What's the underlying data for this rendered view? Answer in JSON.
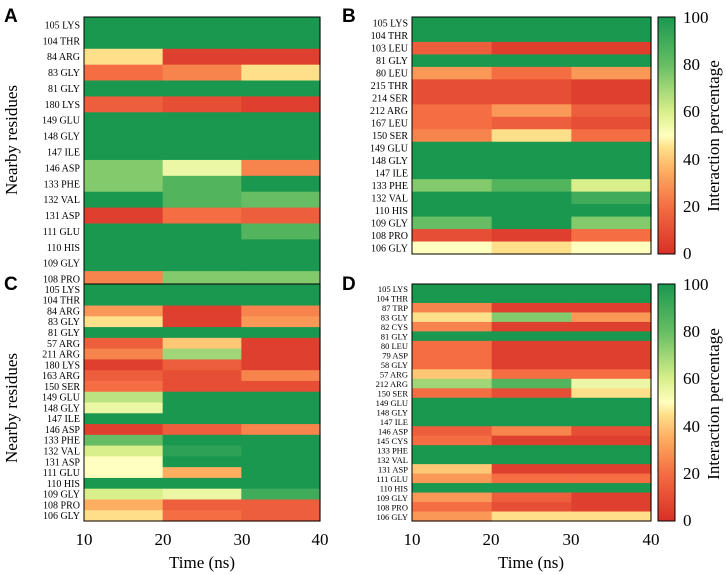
{
  "colors": {
    "c100": "#1a9850",
    "c80": "#66bd63",
    "c60": "#d9ef8b",
    "c50": "#ffffbf",
    "c40": "#fee08b",
    "c20": "#fdae61",
    "c0": "#d73027"
  },
  "chart_data": [
    {
      "type": "heatmap",
      "panel": "A",
      "xlabel": "",
      "ylabel": "Nearby residues",
      "x_bins": [
        "10-20",
        "20-30",
        "30-40"
      ],
      "rows": [
        {
          "label": "105 LYS",
          "values": [
            100,
            100,
            100
          ]
        },
        {
          "label": "104 THR",
          "values": [
            100,
            100,
            100
          ]
        },
        {
          "label": "84 ARG",
          "values": [
            45,
            5,
            5
          ]
        },
        {
          "label": "83 GLY",
          "values": [
            20,
            25,
            45
          ]
        },
        {
          "label": "81 GLY",
          "values": [
            100,
            100,
            100
          ]
        },
        {
          "label": "180 LYS",
          "values": [
            15,
            10,
            5
          ]
        },
        {
          "label": "149 GLU",
          "values": [
            100,
            100,
            100
          ]
        },
        {
          "label": "148 GLY",
          "values": [
            100,
            100,
            100
          ]
        },
        {
          "label": "147 ILE",
          "values": [
            100,
            100,
            100
          ]
        },
        {
          "label": "146 ASP",
          "values": [
            75,
            55,
            25
          ]
        },
        {
          "label": "133 PHE",
          "values": [
            75,
            85,
            100
          ]
        },
        {
          "label": "132 VAL",
          "values": [
            100,
            85,
            80
          ]
        },
        {
          "label": "131 ASP",
          "values": [
            5,
            20,
            15
          ]
        },
        {
          "label": "111 GLU",
          "values": [
            100,
            100,
            85
          ]
        },
        {
          "label": "110 HIS",
          "values": [
            100,
            100,
            100
          ]
        },
        {
          "label": "109 GLY",
          "values": [
            100,
            100,
            100
          ]
        },
        {
          "label": "108 PRO",
          "values": [
            25,
            75,
            75
          ]
        }
      ]
    },
    {
      "type": "heatmap",
      "panel": "B",
      "xlabel": "",
      "ylabel": "",
      "x_bins": [
        "10-20",
        "20-30",
        "30-40"
      ],
      "rows": [
        {
          "label": "105 LYS",
          "values": [
            100,
            100,
            100
          ]
        },
        {
          "label": "104 THR",
          "values": [
            100,
            100,
            100
          ]
        },
        {
          "label": "103 LEU",
          "values": [
            15,
            5,
            5
          ]
        },
        {
          "label": "81 GLY",
          "values": [
            100,
            100,
            100
          ]
        },
        {
          "label": "80 LEU",
          "values": [
            30,
            20,
            30
          ]
        },
        {
          "label": "215 THR",
          "values": [
            10,
            10,
            5
          ]
        },
        {
          "label": "214 SER",
          "values": [
            10,
            10,
            5
          ]
        },
        {
          "label": "212 ARG",
          "values": [
            20,
            30,
            15
          ]
        },
        {
          "label": "167 LEU",
          "values": [
            20,
            15,
            10
          ]
        },
        {
          "label": "150 SER",
          "values": [
            25,
            45,
            20
          ]
        },
        {
          "label": "149 GLU",
          "values": [
            100,
            100,
            100
          ]
        },
        {
          "label": "148 GLY",
          "values": [
            100,
            100,
            100
          ]
        },
        {
          "label": "147 ILE",
          "values": [
            100,
            100,
            100
          ]
        },
        {
          "label": "133 PHE",
          "values": [
            75,
            85,
            60
          ]
        },
        {
          "label": "132 VAL",
          "values": [
            100,
            100,
            90
          ]
        },
        {
          "label": "110 HIS",
          "values": [
            100,
            100,
            100
          ]
        },
        {
          "label": "109 GLY",
          "values": [
            80,
            100,
            75
          ]
        },
        {
          "label": "108 PRO",
          "values": [
            10,
            5,
            20
          ]
        },
        {
          "label": "106 GLY",
          "values": [
            50,
            45,
            50
          ]
        }
      ]
    },
    {
      "type": "heatmap",
      "panel": "C",
      "xlabel": "Time (ns)",
      "ylabel": "Nearby residues",
      "x_bins": [
        "10-20",
        "20-30",
        "30-40"
      ],
      "rows": [
        {
          "label": "105 LYS",
          "values": [
            100,
            100,
            100
          ]
        },
        {
          "label": "104 THR",
          "values": [
            100,
            100,
            100
          ]
        },
        {
          "label": "84 ARG",
          "values": [
            30,
            5,
            25
          ]
        },
        {
          "label": "83 GLY",
          "values": [
            45,
            5,
            30
          ]
        },
        {
          "label": "81 GLY",
          "values": [
            100,
            100,
            100
          ]
        },
        {
          "label": "57 ARG",
          "values": [
            15,
            40,
            5
          ]
        },
        {
          "label": "211 ARG",
          "values": [
            25,
            70,
            5
          ]
        },
        {
          "label": "180 LYS",
          "values": [
            5,
            15,
            5
          ]
        },
        {
          "label": "163 ARG",
          "values": [
            15,
            10,
            25
          ]
        },
        {
          "label": "150 SER",
          "values": [
            20,
            10,
            10
          ]
        },
        {
          "label": "149 GLU",
          "values": [
            65,
            100,
            100
          ]
        },
        {
          "label": "148 GLY",
          "values": [
            55,
            100,
            100
          ]
        },
        {
          "label": "147 ILE",
          "values": [
            100,
            100,
            100
          ]
        },
        {
          "label": "146 ASP",
          "values": [
            5,
            15,
            25
          ]
        },
        {
          "label": "133 PHE",
          "values": [
            80,
            100,
            100
          ]
        },
        {
          "label": "132 VAL",
          "values": [
            60,
            95,
            100
          ]
        },
        {
          "label": "131 ASP",
          "values": [
            50,
            100,
            100
          ]
        },
        {
          "label": "111 GLU",
          "values": [
            50,
            35,
            100
          ]
        },
        {
          "label": "110 HIS",
          "values": [
            100,
            100,
            100
          ]
        },
        {
          "label": "109 GLY",
          "values": [
            60,
            55,
            90
          ]
        },
        {
          "label": "108 PRO",
          "values": [
            35,
            15,
            15
          ]
        },
        {
          "label": "106 GLY",
          "values": [
            45,
            20,
            15
          ]
        }
      ]
    },
    {
      "type": "heatmap",
      "panel": "D",
      "xlabel": "Time (ns)",
      "ylabel": "",
      "x_bins": [
        "10-20",
        "20-30",
        "30-40"
      ],
      "colorbar_label": "Interaction percentage",
      "colorbar_ticks": [
        0,
        20,
        40,
        60,
        80,
        100
      ],
      "rows": [
        {
          "label": "105 LYS",
          "values": [
            100,
            100,
            100
          ]
        },
        {
          "label": "104 THR",
          "values": [
            100,
            100,
            100
          ]
        },
        {
          "label": "87 TRP",
          "values": [
            25,
            5,
            5
          ]
        },
        {
          "label": "83 GLY",
          "values": [
            45,
            75,
            30
          ]
        },
        {
          "label": "82 CYS",
          "values": [
            25,
            5,
            5
          ]
        },
        {
          "label": "81 GLY",
          "values": [
            100,
            100,
            100
          ]
        },
        {
          "label": "80 LEU",
          "values": [
            20,
            5,
            5
          ]
        },
        {
          "label": "79 ASP",
          "values": [
            20,
            5,
            5
          ]
        },
        {
          "label": "58 GLY",
          "values": [
            20,
            5,
            5
          ]
        },
        {
          "label": "57 ARG",
          "values": [
            40,
            20,
            20
          ]
        },
        {
          "label": "212 ARG",
          "values": [
            70,
            85,
            55
          ]
        },
        {
          "label": "150 SER",
          "values": [
            20,
            10,
            45
          ]
        },
        {
          "label": "149 GLU",
          "values": [
            100,
            100,
            100
          ]
        },
        {
          "label": "148 GLY",
          "values": [
            100,
            100,
            100
          ]
        },
        {
          "label": "147 ILE",
          "values": [
            100,
            100,
            100
          ]
        },
        {
          "label": "146 ASP",
          "values": [
            15,
            25,
            10
          ]
        },
        {
          "label": "145 CYS",
          "values": [
            20,
            5,
            5
          ]
        },
        {
          "label": "133 PHE",
          "values": [
            100,
            100,
            100
          ]
        },
        {
          "label": "132 VAL",
          "values": [
            100,
            100,
            100
          ]
        },
        {
          "label": "131 ASP",
          "values": [
            40,
            5,
            5
          ]
        },
        {
          "label": "111 GLU",
          "values": [
            30,
            20,
            20
          ]
        },
        {
          "label": "110 HIS",
          "values": [
            100,
            100,
            100
          ]
        },
        {
          "label": "109 GLY",
          "values": [
            30,
            15,
            5
          ]
        },
        {
          "label": "108 PRO",
          "values": [
            20,
            10,
            5
          ]
        },
        {
          "label": "106 GLY",
          "values": [
            30,
            45,
            45
          ]
        }
      ]
    }
  ],
  "x_ticks": [
    "10",
    "20",
    "30",
    "40"
  ],
  "colorbar_ticks_text": [
    "100",
    "80",
    "60",
    "40",
    "20",
    "0"
  ],
  "colorbar_label_text": "Interaction percentage"
}
